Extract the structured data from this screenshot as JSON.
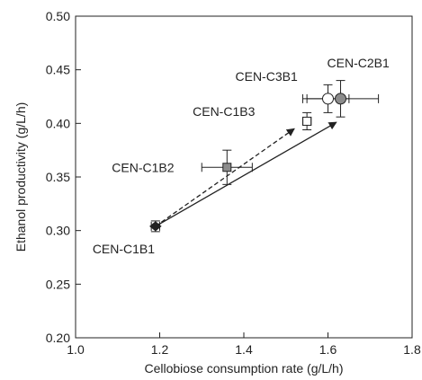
{
  "chart_data": {
    "type": "scatter",
    "xlabel": "Cellobiose consumption rate (g/L/h)",
    "ylabel": "Ethanol productivity (g/L/h)",
    "xlim": [
      1.0,
      1.8
    ],
    "ylim": [
      0.2,
      0.5
    ],
    "xticks": [
      "1.0",
      "1.2",
      "1.4",
      "1.6",
      "1.8"
    ],
    "yticks": [
      "0.20",
      "0.25",
      "0.30",
      "0.35",
      "0.40",
      "0.45",
      "0.50"
    ],
    "grid": false,
    "points": [
      {
        "label": "CEN-C1B1",
        "x": 1.19,
        "y": 0.304,
        "xerr": 0.01,
        "yerr": 0.005,
        "marker": "diamond",
        "fill": "#222222"
      },
      {
        "label": "CEN-C1B2",
        "x": 1.36,
        "y": 0.359,
        "xerr": 0.06,
        "yerr": 0.016,
        "marker": "square",
        "fill": "#8c8c8c"
      },
      {
        "label": "CEN-C1B3",
        "x": 1.55,
        "y": 0.402,
        "xerr": 0.01,
        "yerr": 0.008,
        "marker": "square",
        "fill": "#ffffff"
      },
      {
        "label": "CEN-C3B1",
        "x": 1.6,
        "y": 0.423,
        "xerr": 0.05,
        "yerr": 0.013,
        "marker": "circle",
        "fill": "#ffffff"
      },
      {
        "label": "CEN-C2B1",
        "x": 1.63,
        "y": 0.423,
        "xerr": 0.09,
        "yerr": 0.017,
        "marker": "circle",
        "fill": "#8c8c8c"
      }
    ],
    "arrows": [
      {
        "style": "dashed",
        "from": [
          1.19,
          0.304
        ],
        "to": [
          1.52,
          0.395
        ]
      },
      {
        "style": "solid",
        "from": [
          1.19,
          0.304
        ],
        "to": [
          1.62,
          0.401
        ]
      }
    ]
  }
}
